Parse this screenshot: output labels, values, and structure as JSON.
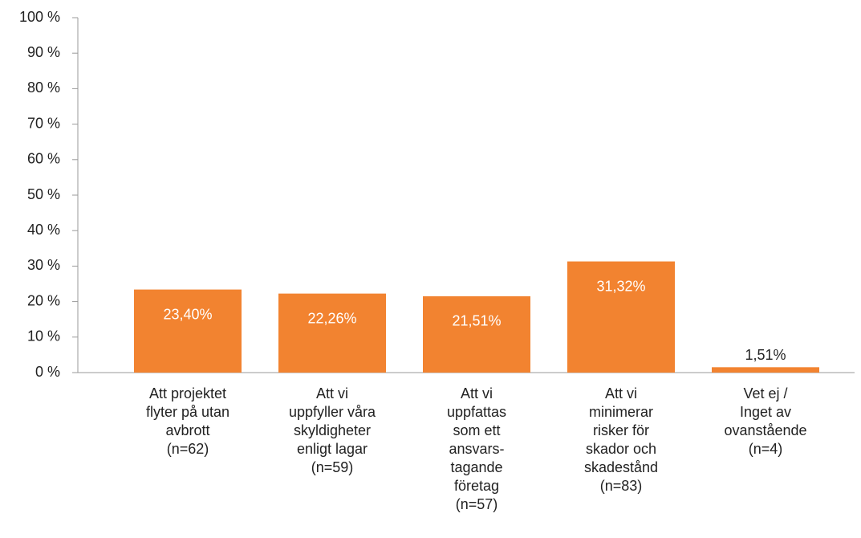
{
  "chart_data": {
    "type": "bar",
    "categories": [
      "Att projektet\nflyter på utan\navbrott\n(n=62)",
      "Att vi\nuppfyller våra\nskyldigheter\nenligt lagar\n(n=59)",
      "Att vi\nuppfattas\nsom ett\nansvars-\ntagande\nföretag\n(n=57)",
      "Att vi\nminimerar\nrisker för\nskador och\nskadestånd\n(n=83)",
      "Vet ej /\nInget av\novanstående\n(n=4)"
    ],
    "values": [
      23.4,
      22.26,
      21.51,
      31.32,
      1.51
    ],
    "value_labels": [
      "23,40%",
      "22,26%",
      "21,51%",
      "31,32%",
      "1,51%"
    ],
    "color": "#f28330",
    "ylim": [
      0,
      100
    ],
    "yticks": [
      {
        "value": 0,
        "label": "0 %"
      },
      {
        "value": 10,
        "label": "10 %"
      },
      {
        "value": 20,
        "label": "20 %"
      },
      {
        "value": 30,
        "label": "30 %"
      },
      {
        "value": 40,
        "label": "40 %"
      },
      {
        "value": 50,
        "label": "50 %"
      },
      {
        "value": 60,
        "label": "60 %"
      },
      {
        "value": 70,
        "label": "70 %"
      },
      {
        "value": 80,
        "label": "80 %"
      },
      {
        "value": 90,
        "label": "90 %"
      },
      {
        "value": 100,
        "label": "100 %"
      }
    ],
    "grid": false
  }
}
